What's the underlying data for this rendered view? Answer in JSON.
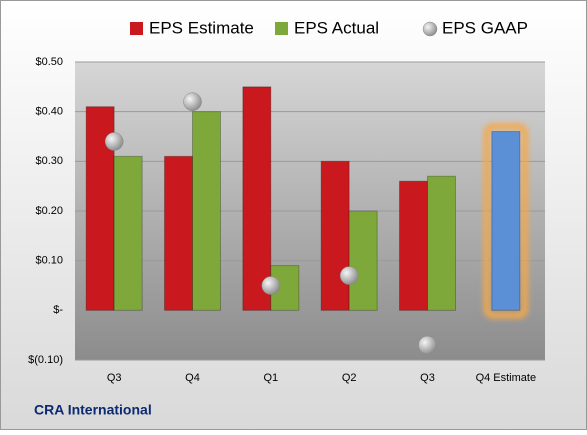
{
  "chart_data": {
    "type": "bar",
    "categories": [
      "Q3",
      "Q4",
      "Q1",
      "Q2",
      "Q3",
      "Q4 Estimate"
    ],
    "series": [
      {
        "name": "EPS Estimate",
        "color": "#c9191e",
        "values": [
          0.41,
          0.31,
          0.45,
          0.3,
          0.26,
          null
        ]
      },
      {
        "name": "EPS Actual",
        "color": "#7fa83a",
        "values": [
          0.31,
          0.4,
          0.09,
          0.2,
          0.27,
          null
        ]
      },
      {
        "name": "EPS GAAP",
        "color": "#b0b0b0",
        "marker": "circle",
        "values": [
          0.34,
          0.42,
          0.05,
          0.07,
          -0.07,
          null
        ]
      }
    ],
    "forecast_value": 0.36,
    "forecast_color": "#5b8fd6",
    "ylim": [
      -0.1,
      0.5
    ],
    "yticks": [
      {
        "value": -0.1,
        "label": "$(0.10)"
      },
      {
        "value": 0,
        "label": "$-"
      },
      {
        "value": 0.1,
        "label": "$0.10"
      },
      {
        "value": 0.2,
        "label": "$0.20"
      },
      {
        "value": 0.3,
        "label": "$0.30"
      },
      {
        "value": 0.4,
        "label": "$0.40"
      },
      {
        "value": 0.5,
        "label": "$0.50"
      }
    ],
    "grid": true,
    "footer": "CRA International"
  }
}
